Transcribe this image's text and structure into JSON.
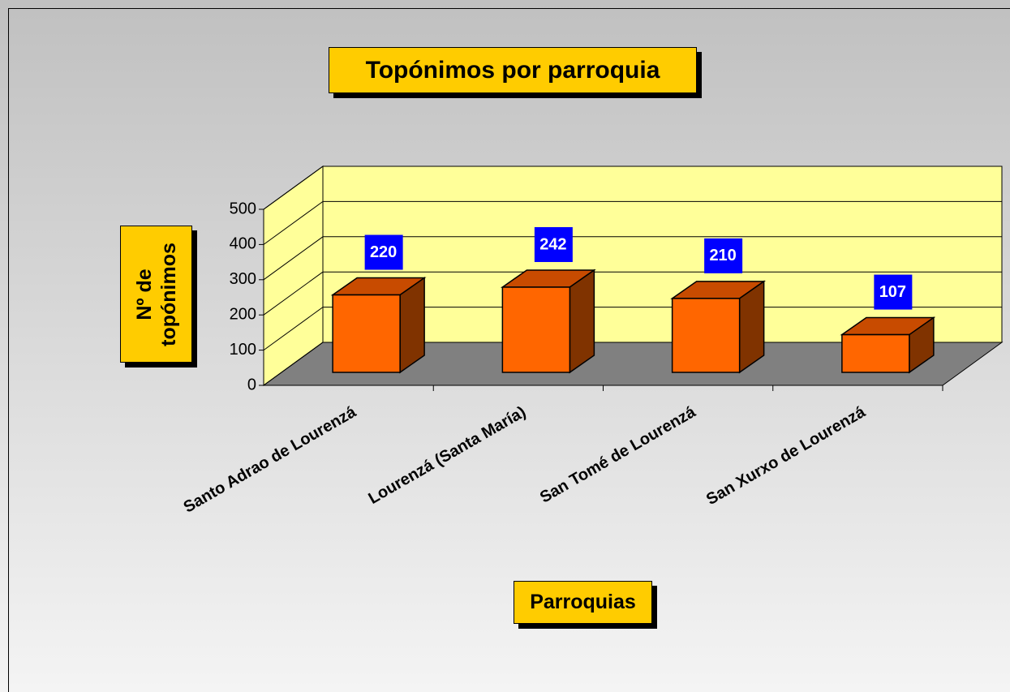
{
  "chart_data": {
    "type": "bar3d",
    "title": "Topónimos por parroquia",
    "categories": [
      "Santo Adrao de Lourenzá",
      "Lourenzá (Santa María)",
      "San Tomé de Lourenzá",
      "San Xurxo de Lourenzá"
    ],
    "values": [
      220,
      242,
      210,
      107
    ],
    "color": "#ff6600",
    "y_label": "Nº de topónimos",
    "x_label": "Parroquias",
    "ylim": [
      0,
      500
    ],
    "yticks": [
      0,
      100,
      200,
      300,
      400,
      500
    ],
    "grid": true
  }
}
